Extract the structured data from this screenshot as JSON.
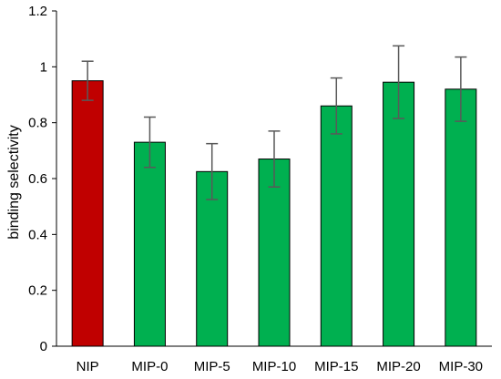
{
  "chart_data": {
    "type": "bar",
    "title": "",
    "xlabel": "",
    "ylabel": "binding selectivity",
    "ylim": [
      0,
      1.2
    ],
    "yticks": [
      0,
      0.2,
      0.4,
      0.6,
      0.8,
      1,
      1.2
    ],
    "ytick_labels": [
      "0",
      "0.2",
      "0.4",
      "0.6",
      "0.8",
      "1",
      "1.2"
    ],
    "categories": [
      "NIP",
      "MIP-0",
      "MIP-5",
      "MIP-10",
      "MIP-15",
      "MIP-20",
      "MIP-30"
    ],
    "values": [
      0.95,
      0.73,
      0.625,
      0.67,
      0.86,
      0.945,
      0.92
    ],
    "errors": [
      0.07,
      0.09,
      0.1,
      0.1,
      0.1,
      0.13,
      0.115
    ],
    "colors": [
      "#c00000",
      "#00b050",
      "#00b050",
      "#00b050",
      "#00b050",
      "#00b050",
      "#00b050"
    ],
    "bar_edge_color": "#000000",
    "error_bar_color": "#595959",
    "grid": false,
    "legend": "none"
  }
}
